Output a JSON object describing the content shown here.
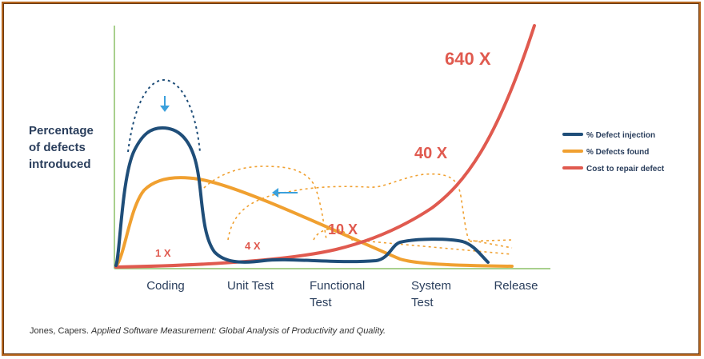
{
  "chart_data": {
    "type": "line",
    "ylabel": [
      "Percentage",
      "of defects",
      "introduced"
    ],
    "categories": [
      [
        "Coding"
      ],
      [
        "Unit Test"
      ],
      [
        "Functional",
        "Test"
      ],
      [
        "System",
        "Test"
      ],
      [
        "Release"
      ]
    ],
    "series": [
      {
        "name": "% Defect injection",
        "color": "#1f4e79"
      },
      {
        "name": "% Defects found",
        "color": "#f0a030"
      },
      {
        "name": "Cost to repair defect",
        "color": "#e05a4f"
      }
    ],
    "annotations": [
      {
        "id": "1x",
        "text": "1 X",
        "category": "Coding"
      },
      {
        "id": "4x",
        "text": "4 X",
        "category": "Unit Test"
      },
      {
        "id": "10x",
        "text": "10 X",
        "category": "Functional Test"
      },
      {
        "id": "40x",
        "text": "40 X",
        "category": "System Test"
      },
      {
        "id": "640x",
        "text": "640 X",
        "category": "Release"
      }
    ],
    "legend_position": "right",
    "grid": false
  },
  "citation": {
    "author": "Jones, Capers.",
    "title": "Applied Software Measurement: Global Analysis of Productivity and Quality."
  },
  "colors": {
    "axis": "#a8d08d",
    "arrow": "#3ba0dc",
    "frame": "#b5651d"
  }
}
